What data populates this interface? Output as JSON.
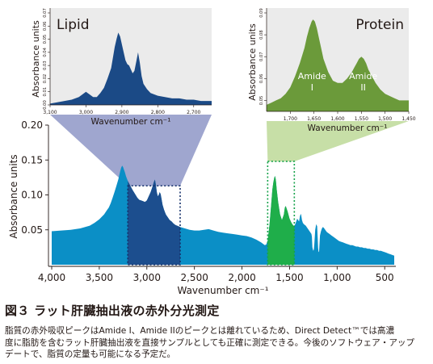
{
  "figure": {
    "caption_title": "図３ ラット肝臓抽出液の赤外分光測定",
    "caption_lines": [
      "脂質の赤外吸収ピークはAmide I、Amide IIのピークとは離れているため、Direct Detect™では高濃",
      "度に脂肪を含むラット肝臓抽出液を直接サンプルとしても正確に測定できる。今後のソフトウェア・アップ",
      "デートで、脂質の定量も可能になる予定だ。"
    ]
  },
  "colors": {
    "main_fill": "#0b8fc6",
    "lipid_fill": "#1b4a86",
    "protein_fill": "#6b9a3a",
    "protein_band": "#1fae4a",
    "lipid_highlight": "#1c4e8e",
    "inset_bg": "#ebebeb",
    "lipid_connector": "#9fa6cf",
    "protein_connector": "#c7dfa7"
  },
  "chart_data": [
    {
      "type": "area",
      "title": "",
      "xlabel": "Wavenumber cm⁻¹",
      "ylabel": "Absorbance units",
      "xlim": [
        4000,
        400
      ],
      "ylim": [
        0,
        0.2
      ],
      "x_reversed": true,
      "x_ticks": [
        4000,
        3500,
        3000,
        2500,
        2000,
        1500,
        1000,
        500
      ],
      "x_tick_labels": [
        "4,000",
        "3,500",
        "3,000",
        "2,500",
        "2,000",
        "1,500",
        "1,000",
        "500"
      ],
      "y_ticks": [
        0.05,
        0.1,
        0.15,
        0.2
      ],
      "y_tick_labels": [
        "0.05",
        "0.10",
        "0.15",
        "0.20"
      ],
      "lipid_region": [
        3200,
        2650
      ],
      "protein_region": [
        1730,
        1450
      ],
      "series": [
        {
          "x": [
            4000,
            3900,
            3800,
            3700,
            3600,
            3550,
            3500,
            3450,
            3420,
            3400,
            3380,
            3360,
            3340,
            3320,
            3300,
            3290,
            3280,
            3270,
            3260,
            3250,
            3240,
            3230,
            3220,
            3200,
            3150,
            3100,
            3080,
            3060,
            3040,
            3020,
            3000,
            2980,
            2960,
            2940,
            2925,
            2915,
            2905,
            2895,
            2885,
            2875,
            2865,
            2855,
            2845,
            2835,
            2820,
            2800,
            2780,
            2760,
            2740,
            2720,
            2700,
            2650,
            2600,
            2550,
            2500,
            2450,
            2400,
            2350,
            2300,
            2250,
            2200,
            2150,
            2100,
            2050,
            2000,
            1950,
            1900,
            1850,
            1800,
            1760,
            1745,
            1730,
            1710,
            1690,
            1680,
            1670,
            1660,
            1652,
            1645,
            1635,
            1620,
            1600,
            1580,
            1560,
            1550,
            1540,
            1520,
            1500,
            1480,
            1460,
            1450,
            1440,
            1420,
            1400,
            1390,
            1380,
            1370,
            1360,
            1350,
            1330,
            1310,
            1290,
            1270,
            1265,
            1260,
            1255,
            1250,
            1245,
            1240,
            1230,
            1220,
            1210,
            1205,
            1200,
            1195,
            1190,
            1185,
            1180,
            1170,
            1160,
            1150,
            1140,
            1130,
            1120,
            1110,
            1100,
            1080,
            1060,
            1040,
            1020,
            1000,
            980,
            960,
            940,
            920,
            900,
            880,
            860,
            840,
            820,
            800,
            780,
            760,
            740,
            720,
            700,
            680,
            660,
            640,
            620,
            600,
            580,
            560,
            540,
            520,
            500,
            480,
            460,
            440,
            420,
            400
          ],
          "y": [
            0.048,
            0.049,
            0.05,
            0.052,
            0.056,
            0.06,
            0.065,
            0.072,
            0.078,
            0.082,
            0.088,
            0.096,
            0.104,
            0.113,
            0.122,
            0.128,
            0.134,
            0.139,
            0.142,
            0.14,
            0.136,
            0.132,
            0.127,
            0.12,
            0.107,
            0.096,
            0.093,
            0.092,
            0.091,
            0.09,
            0.092,
            0.098,
            0.104,
            0.112,
            0.119,
            0.122,
            0.114,
            0.104,
            0.098,
            0.1,
            0.104,
            0.101,
            0.094,
            0.086,
            0.079,
            0.072,
            0.068,
            0.064,
            0.062,
            0.059,
            0.057,
            0.054,
            0.052,
            0.05,
            0.049,
            0.049,
            0.05,
            0.051,
            0.049,
            0.047,
            0.046,
            0.045,
            0.044,
            0.043,
            0.042,
            0.041,
            0.039,
            0.036,
            0.032,
            0.028,
            0.029,
            0.035,
            0.058,
            0.092,
            0.108,
            0.118,
            0.125,
            0.127,
            0.122,
            0.108,
            0.09,
            0.072,
            0.064,
            0.072,
            0.082,
            0.084,
            0.076,
            0.066,
            0.06,
            0.056,
            0.056,
            0.058,
            0.066,
            0.062,
            0.07,
            0.073,
            0.064,
            0.06,
            0.058,
            0.056,
            0.052,
            0.048,
            0.044,
            0.04,
            0.025,
            0.022,
            0.02,
            0.022,
            0.03,
            0.05,
            0.058,
            0.055,
            0.04,
            0.024,
            0.018,
            0.019,
            0.03,
            0.042,
            0.048,
            0.052,
            0.054,
            0.053,
            0.051,
            0.049,
            0.047,
            0.046,
            0.044,
            0.042,
            0.04,
            0.038,
            0.036,
            0.034,
            0.033,
            0.032,
            0.031,
            0.03,
            0.029,
            0.028,
            0.028,
            0.027,
            0.026,
            0.026,
            0.025,
            0.025,
            0.024,
            0.024,
            0.023,
            0.023,
            0.022,
            0.022,
            0.021,
            0.021,
            0.02,
            0.02,
            0.019,
            0.018,
            0.017,
            0.016,
            0.015,
            0.014,
            0.013
          ]
        }
      ]
    },
    {
      "type": "area",
      "title": "Lipid",
      "xlabel": "Wavenumber cm⁻¹",
      "ylabel": "Absorbance units",
      "xlim": [
        3100,
        2650
      ],
      "ylim": [
        0,
        0.07
      ],
      "x_reversed": true,
      "x_ticks": [
        3100,
        3000,
        2900,
        2800,
        2700
      ],
      "x_tick_labels": [
        "3,100",
        "3,000",
        "2,900",
        "2,800",
        "2,700"
      ],
      "y_ticks": [
        0,
        0.01,
        0.02,
        0.03,
        0.04,
        0.05,
        0.06,
        0.07
      ],
      "y_tick_labels": [
        "0.00",
        "0.01",
        "0.02",
        "0.03",
        "0.04",
        "0.05",
        "0.06",
        "0.07"
      ],
      "series": [
        {
          "x": [
            3100,
            3080,
            3060,
            3040,
            3020,
            3010,
            3000,
            2990,
            2980,
            2970,
            2960,
            2950,
            2940,
            2930,
            2925,
            2920,
            2915,
            2910,
            2905,
            2900,
            2895,
            2890,
            2885,
            2880,
            2875,
            2870,
            2865,
            2860,
            2855,
            2850,
            2845,
            2840,
            2830,
            2820,
            2800,
            2780,
            2760,
            2740,
            2720,
            2700,
            2680,
            2650
          ],
          "y": [
            0.001,
            0.002,
            0.003,
            0.004,
            0.006,
            0.008,
            0.01,
            0.008,
            0.006,
            0.006,
            0.009,
            0.013,
            0.02,
            0.028,
            0.036,
            0.044,
            0.05,
            0.055,
            0.052,
            0.046,
            0.04,
            0.034,
            0.031,
            0.03,
            0.027,
            0.024,
            0.026,
            0.033,
            0.04,
            0.032,
            0.022,
            0.016,
            0.012,
            0.009,
            0.007,
            0.006,
            0.005,
            0.005,
            0.004,
            0.004,
            0.003,
            0.003
          ]
        }
      ]
    },
    {
      "type": "area",
      "title": "Protein",
      "xlabel": "Wavenumber cm⁻¹",
      "ylabel": "Absorbance units",
      "xlim": [
        1750,
        1450
      ],
      "ylim": [
        0.045,
        0.09
      ],
      "x_reversed": true,
      "x_ticks": [
        1700,
        1650,
        1600,
        1550,
        1500,
        1450
      ],
      "x_tick_labels": [
        "1,700",
        "1,650",
        "1,600",
        "1,550",
        "1,500",
        "1,450"
      ],
      "y_ticks": [
        0.05,
        0.06,
        0.07,
        0.08,
        0.09
      ],
      "y_tick_labels": [
        "0.05",
        "0.06",
        "0.07",
        "0.08",
        "0.09"
      ],
      "annotations": [
        {
          "text": "Amide I",
          "line1": "Amide",
          "line2": "I",
          "x": 1654,
          "y": 0.056
        },
        {
          "text": "Amide II",
          "line1": "Amide",
          "line2": "II",
          "x": 1546,
          "y": 0.056
        }
      ],
      "series": [
        {
          "x": [
            1750,
            1740,
            1730,
            1720,
            1710,
            1700,
            1690,
            1680,
            1670,
            1665,
            1660,
            1655,
            1652,
            1648,
            1644,
            1640,
            1635,
            1630,
            1620,
            1610,
            1600,
            1590,
            1580,
            1570,
            1565,
            1560,
            1555,
            1550,
            1545,
            1540,
            1535,
            1530,
            1520,
            1510,
            1500,
            1490,
            1480,
            1470,
            1460,
            1450
          ],
          "y": [
            0.048,
            0.049,
            0.05,
            0.051,
            0.053,
            0.056,
            0.061,
            0.067,
            0.074,
            0.079,
            0.083,
            0.086,
            0.087,
            0.086,
            0.083,
            0.079,
            0.074,
            0.069,
            0.063,
            0.059,
            0.058,
            0.058,
            0.06,
            0.063,
            0.065,
            0.067,
            0.069,
            0.07,
            0.069,
            0.067,
            0.064,
            0.062,
            0.058,
            0.055,
            0.053,
            0.052,
            0.051,
            0.05,
            0.05,
            0.05
          ]
        }
      ]
    }
  ]
}
